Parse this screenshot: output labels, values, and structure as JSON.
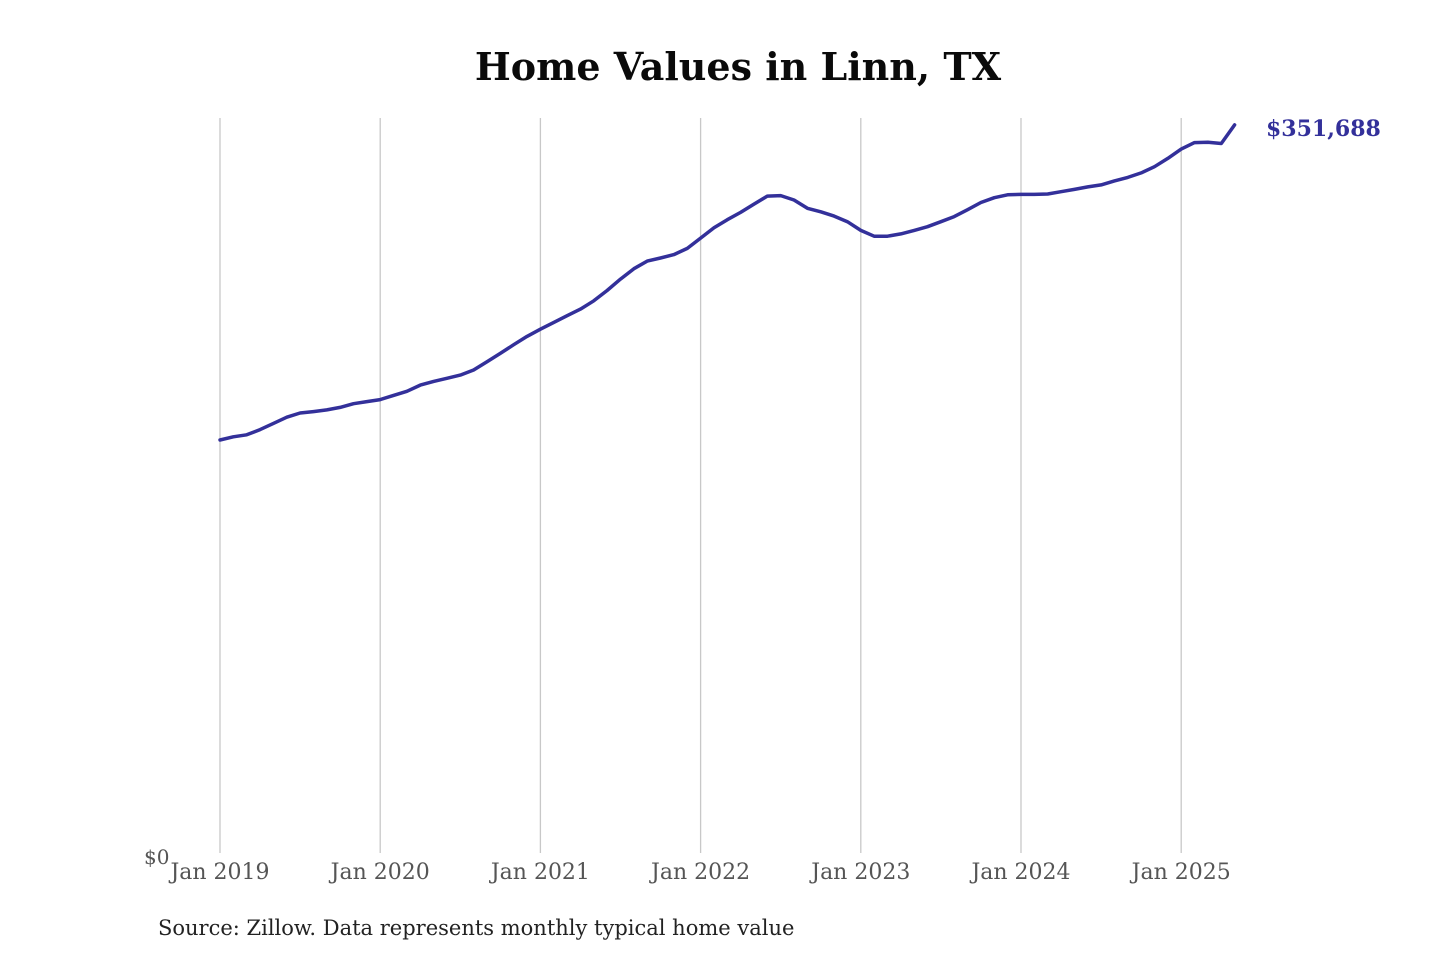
{
  "chart_data": {
    "type": "line",
    "title": "Home Values in Linn, TX",
    "xlabel": "",
    "ylabel": "",
    "x_ticks": [
      "Jan 2019",
      "Jan 2020",
      "Jan 2021",
      "Jan 2022",
      "Jan 2023",
      "Jan 2024",
      "Jan 2025"
    ],
    "y_tick_label": "$0",
    "ylim": [
      0,
      355000
    ],
    "grid": "vertical",
    "end_label": "$351,688",
    "line_color": "#33309a",
    "series": [
      {
        "points": [
          [
            "2019-01",
            199500
          ],
          [
            "2019-02",
            201000
          ],
          [
            "2019-03",
            202000
          ],
          [
            "2019-04",
            204500
          ],
          [
            "2019-05",
            207500
          ],
          [
            "2019-06",
            210500
          ],
          [
            "2019-07",
            212500
          ],
          [
            "2019-08",
            213200
          ],
          [
            "2019-09",
            214000
          ],
          [
            "2019-10",
            215200
          ],
          [
            "2019-11",
            217000
          ],
          [
            "2019-12",
            218000
          ],
          [
            "2020-01",
            219000
          ],
          [
            "2020-02",
            221000
          ],
          [
            "2020-03",
            223000
          ],
          [
            "2020-04",
            226000
          ],
          [
            "2020-05",
            227800
          ],
          [
            "2020-06",
            229300
          ],
          [
            "2020-07",
            230800
          ],
          [
            "2020-08",
            233300
          ],
          [
            "2020-09",
            237300
          ],
          [
            "2020-10",
            241300
          ],
          [
            "2020-11",
            245500
          ],
          [
            "2020-12",
            249500
          ],
          [
            "2021-01",
            253000
          ],
          [
            "2021-02",
            256300
          ],
          [
            "2021-03",
            259500
          ],
          [
            "2021-04",
            262700
          ],
          [
            "2021-05",
            266700
          ],
          [
            "2021-06",
            271700
          ],
          [
            "2021-07",
            277200
          ],
          [
            "2021-08",
            282200
          ],
          [
            "2021-09",
            285900
          ],
          [
            "2021-10",
            287400
          ],
          [
            "2021-11",
            289000
          ],
          [
            "2021-12",
            292000
          ],
          [
            "2022-01",
            297000
          ],
          [
            "2022-02",
            302000
          ],
          [
            "2022-03",
            305900
          ],
          [
            "2022-04",
            309400
          ],
          [
            "2022-05",
            313400
          ],
          [
            "2022-06",
            317300
          ],
          [
            "2022-07",
            317500
          ],
          [
            "2022-08",
            315400
          ],
          [
            "2022-09",
            311400
          ],
          [
            "2022-10",
            309700
          ],
          [
            "2022-11",
            307600
          ],
          [
            "2022-12",
            304900
          ],
          [
            "2023-01",
            300700
          ],
          [
            "2023-02",
            297900
          ],
          [
            "2023-03",
            297900
          ],
          [
            "2023-04",
            299000
          ],
          [
            "2023-05",
            300700
          ],
          [
            "2023-06",
            302500
          ],
          [
            "2023-07",
            304900
          ],
          [
            "2023-08",
            307400
          ],
          [
            "2023-09",
            310700
          ],
          [
            "2023-10",
            314200
          ],
          [
            "2023-11",
            316500
          ],
          [
            "2023-12",
            317900
          ],
          [
            "2024-01",
            318100
          ],
          [
            "2024-02",
            318100
          ],
          [
            "2024-03",
            318300
          ],
          [
            "2024-04",
            319400
          ],
          [
            "2024-05",
            320500
          ],
          [
            "2024-06",
            321700
          ],
          [
            "2024-07",
            322700
          ],
          [
            "2024-08",
            324600
          ],
          [
            "2024-09",
            326300
          ],
          [
            "2024-10",
            328500
          ],
          [
            "2024-11",
            331500
          ],
          [
            "2024-12",
            335500
          ],
          [
            "2025-01",
            340000
          ],
          [
            "2025-02",
            343100
          ],
          [
            "2025-03",
            343300
          ],
          [
            "2025-04",
            342700
          ],
          [
            "2025-05",
            351688
          ]
        ]
      }
    ]
  },
  "source_note": "Source: Zillow. Data represents monthly typical home value"
}
